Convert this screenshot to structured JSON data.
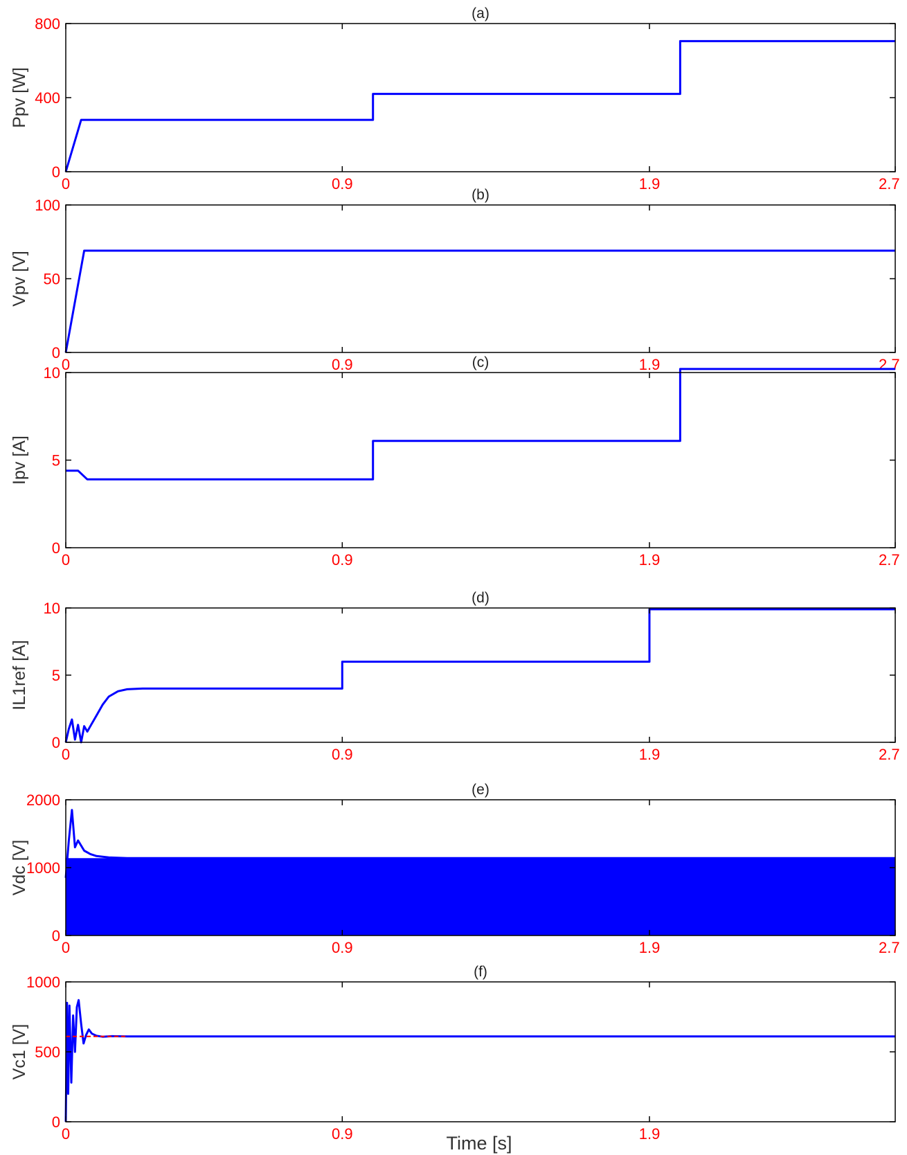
{
  "colors": {
    "trace": "#0000ff",
    "reference": "#ff0000",
    "ticks": "#ff0000",
    "frame": "#000000"
  },
  "chart_data": [
    {
      "type": "line",
      "title": "(a)",
      "ylabel": "Ppv [W]",
      "xlabel": "",
      "xlim": [
        0,
        2.7
      ],
      "ylim": [
        0,
        800
      ],
      "xticks": [
        0,
        0.9,
        1.9,
        2.7
      ],
      "xtick_labels": [
        "0",
        "0.9",
        "1.9",
        "2.7"
      ],
      "yticks": [
        0,
        400,
        800
      ],
      "ytick_labels": [
        "0",
        "400",
        "800"
      ],
      "series": [
        {
          "x": [
            0,
            0.05,
            1.0,
            1.0,
            2.0,
            2.0,
            2.7
          ],
          "y": [
            0,
            280,
            280,
            420,
            420,
            705,
            705
          ]
        }
      ]
    },
    {
      "type": "line",
      "title": "(b)",
      "ylabel": "Vpv [V]",
      "xlabel": "",
      "xlim": [
        0,
        2.7
      ],
      "ylim": [
        0,
        100
      ],
      "xticks": [
        0,
        0.9,
        1.9,
        2.7
      ],
      "xtick_labels": [
        "0",
        "0.9",
        "1.9",
        "2.7"
      ],
      "yticks": [
        0,
        50,
        100
      ],
      "ytick_labels": [
        "0",
        "50",
        "100"
      ],
      "series": [
        {
          "x": [
            0,
            0.06,
            2.7
          ],
          "y": [
            0,
            69,
            69
          ]
        }
      ]
    },
    {
      "type": "line",
      "title": "(c)",
      "ylabel": "Ipv [A]",
      "xlabel": "",
      "xlim": [
        0,
        2.7
      ],
      "ylim": [
        0,
        10
      ],
      "xticks": [
        0,
        0.9,
        1.9,
        2.7
      ],
      "xtick_labels": [
        "0",
        "0.9",
        "1.9",
        "2.7"
      ],
      "yticks": [
        0,
        5,
        10
      ],
      "ytick_labels": [
        "0",
        "5",
        "10"
      ],
      "series": [
        {
          "x": [
            0,
            0.04,
            0.07,
            1.0,
            1.0,
            2.0,
            2.0,
            2.7
          ],
          "y": [
            4.4,
            4.4,
            3.9,
            3.9,
            6.1,
            6.1,
            10.2,
            10.2
          ]
        }
      ]
    },
    {
      "type": "line",
      "title": "(d)",
      "ylabel": "IL1ref [A]",
      "xlabel": "",
      "xlim": [
        0,
        2.7
      ],
      "ylim": [
        0,
        10
      ],
      "xticks": [
        0,
        0.9,
        1.9,
        2.7
      ],
      "xtick_labels": [
        "0",
        "0.9",
        "1.9",
        "2.7"
      ],
      "yticks": [
        0,
        5,
        10
      ],
      "ytick_labels": [
        "0",
        "5",
        "10"
      ],
      "series": [
        {
          "x": [
            0,
            0.01,
            0.02,
            0.03,
            0.04,
            0.05,
            0.06,
            0.07,
            0.08,
            0.1,
            0.12,
            0.14,
            0.17,
            0.2,
            0.25,
            0.9,
            0.9,
            1.9,
            1.9,
            2.7
          ],
          "y": [
            0,
            1.0,
            1.7,
            0.2,
            1.3,
            0,
            1.2,
            0.8,
            1.2,
            2.0,
            2.8,
            3.4,
            3.8,
            3.95,
            4.0,
            4.0,
            6.0,
            6.0,
            9.9,
            9.9
          ]
        }
      ]
    },
    {
      "type": "line",
      "title": "(e)",
      "ylabel": "Vdc [V]",
      "xlabel": "",
      "xlim": [
        0,
        2.7
      ],
      "ylim": [
        0,
        2000
      ],
      "xticks": [
        0,
        0.9,
        1.9,
        2.7
      ],
      "xtick_labels": [
        "0",
        "0.9",
        "1.9",
        "2.7"
      ],
      "yticks": [
        0,
        1000,
        2000
      ],
      "ytick_labels": [
        "0",
        "1000",
        "2000"
      ],
      "series": [
        {
          "x": [
            0,
            0.01,
            0.02,
            0.03,
            0.04,
            0.06,
            0.08,
            0.1,
            0.14,
            0.2,
            2.7
          ],
          "y": [
            850,
            1400,
            1850,
            1300,
            1400,
            1250,
            1200,
            1170,
            1150,
            1140,
            1140
          ]
        }
      ]
    },
    {
      "type": "line",
      "title": "(f)",
      "ylabel": "Vc1 [V]",
      "xlabel": "Time [s]",
      "xlim": [
        0,
        2.7
      ],
      "ylim": [
        0,
        1000
      ],
      "xticks": [
        0,
        0.9,
        1.9
      ],
      "xtick_labels": [
        "0",
        "0.9",
        "1.9"
      ],
      "yticks": [
        0,
        500,
        1000
      ],
      "ytick_labels": [
        "0",
        "500",
        "1000"
      ],
      "series": [
        {
          "x": [
            0,
            0.004,
            0.008,
            0.012,
            0.018,
            0.024,
            0.03,
            0.036,
            0.042,
            0.05,
            0.058,
            0.066,
            0.075,
            0.085,
            0.1,
            0.12,
            0.15,
            0.2,
            2.7
          ],
          "y": [
            0,
            850,
            200,
            830,
            280,
            760,
            500,
            820,
            870,
            700,
            560,
            620,
            660,
            630,
            615,
            608,
            612,
            610,
            610
          ]
        },
        {
          "x": [
            0,
            0.2
          ],
          "y": [
            610,
            610
          ]
        }
      ]
    }
  ]
}
